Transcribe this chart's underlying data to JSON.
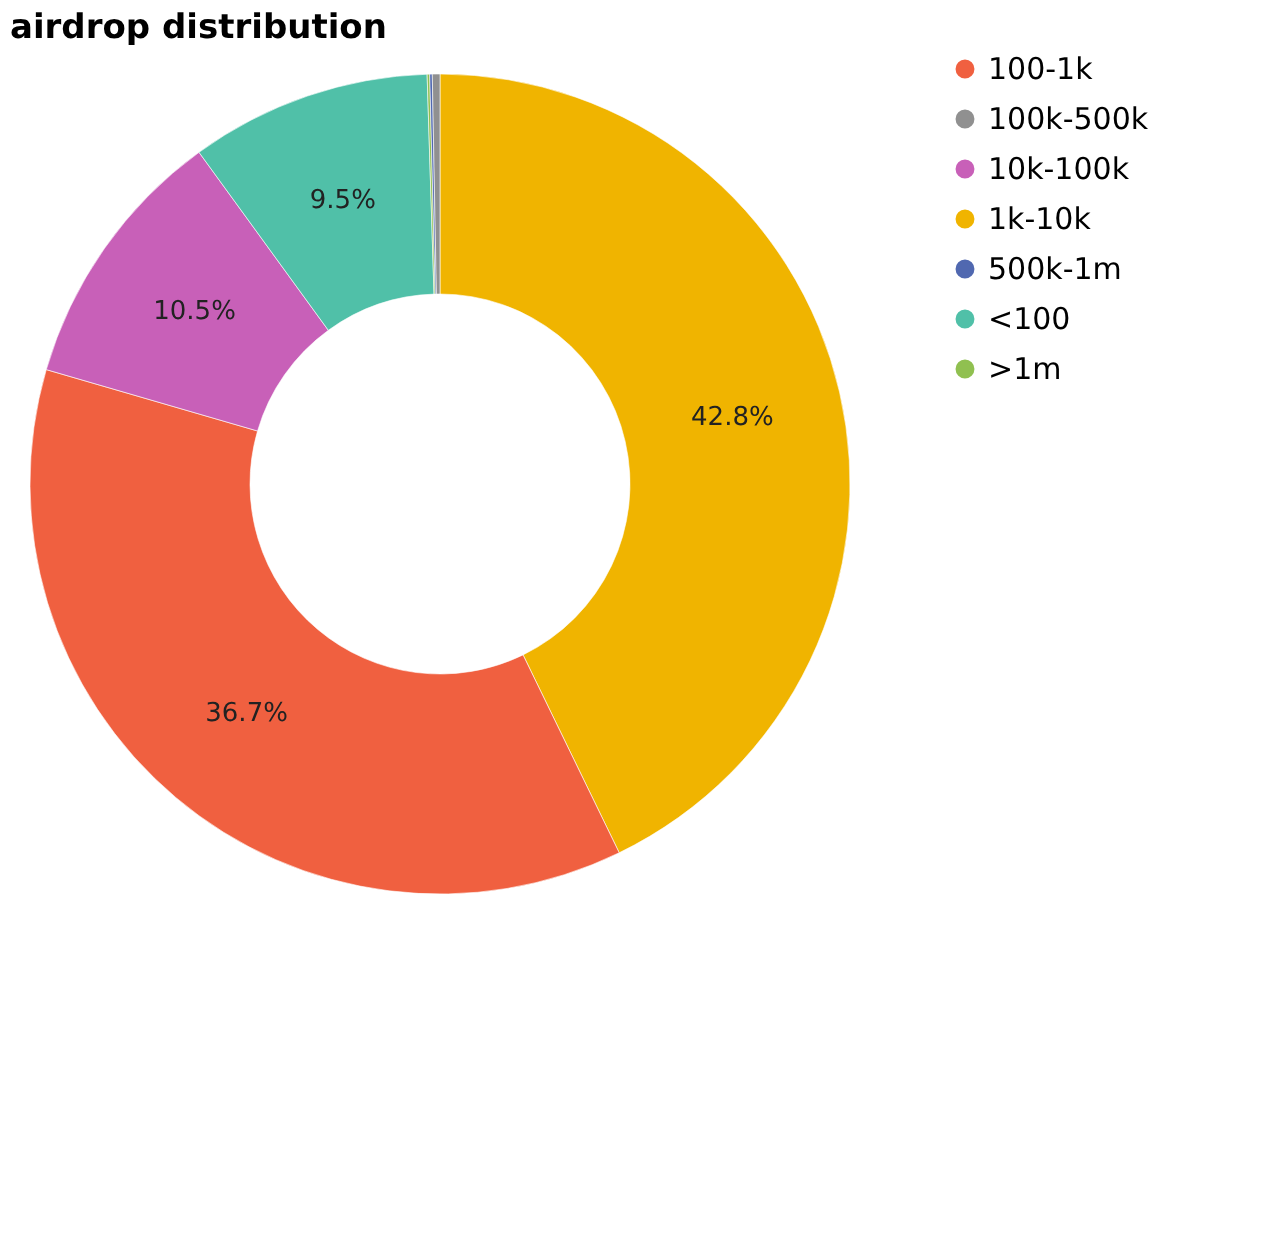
{
  "chart_data": {
    "type": "donut",
    "title": "airdrop distribution",
    "categories": [
      "1k-10k",
      "100-1k",
      "10k-100k",
      "<100",
      ">1m",
      "500k-1m",
      "100k-500k"
    ],
    "values": [
      42.8,
      36.7,
      10.5,
      9.5,
      0.1,
      0.1,
      0.3
    ],
    "colors": [
      "#f0b400",
      "#f06040",
      "#c860b8",
      "#50c0a8",
      "#90c050",
      "#5068b0",
      "#909090"
    ],
    "value_labels": [
      "42.8%",
      "36.7%",
      "10.5%",
      "9.5%",
      null,
      null,
      null
    ],
    "legend": "right"
  }
}
